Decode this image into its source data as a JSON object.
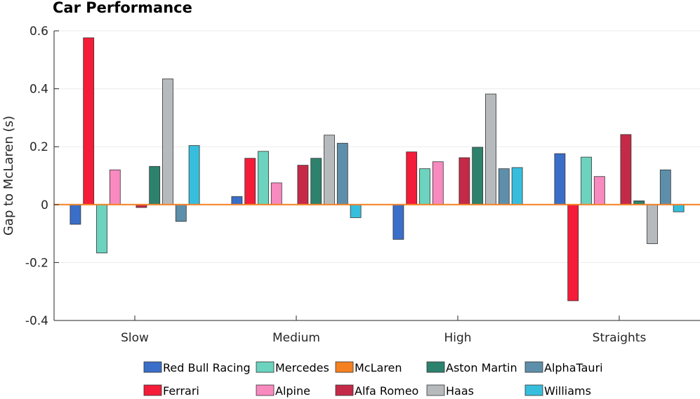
{
  "chart_data": {
    "type": "bar",
    "title": "Car Performance",
    "xlabel": "",
    "ylabel": "Gap to McLaren (s)",
    "ylim": [
      -0.4,
      0.6
    ],
    "yticks": [
      -0.4,
      -0.2,
      0,
      0.2,
      0.4,
      0.6
    ],
    "ytick_labels": [
      "-0.4",
      "-0.2",
      "0",
      "0.2",
      "0.4",
      "0.6"
    ],
    "grid": true,
    "legend_position": "bottom",
    "categories": [
      "Slow",
      "Medium",
      "High",
      "Straights"
    ],
    "series": [
      {
        "name": "Red Bull Racing",
        "color": "#3a6fc9",
        "values": [
          -0.068,
          0.028,
          -0.12,
          0.176
        ]
      },
      {
        "name": "Ferrari",
        "color": "#f41c39",
        "values": [
          0.576,
          0.16,
          0.182,
          -0.332
        ]
      },
      {
        "name": "Mercedes",
        "color": "#6cd3bf",
        "values": [
          -0.167,
          0.184,
          0.124,
          0.164
        ]
      },
      {
        "name": "Alpine",
        "color": "#f88ac0",
        "values": [
          0.12,
          0.075,
          0.148,
          0.097
        ]
      },
      {
        "name": "McLaren",
        "color": "#f58020",
        "values": [
          0,
          0,
          0,
          0
        ]
      },
      {
        "name": "Alfa Romeo",
        "color": "#c42a47",
        "values": [
          -0.01,
          0.136,
          0.162,
          0.242
        ]
      },
      {
        "name": "Aston Martin",
        "color": "#2d826d",
        "values": [
          0.132,
          0.16,
          0.198,
          0.013
        ]
      },
      {
        "name": "Haas",
        "color": "#b6babd",
        "values": [
          0.434,
          0.24,
          0.382,
          -0.135
        ]
      },
      {
        "name": "AlphaTauri",
        "color": "#5e8faa",
        "values": [
          -0.058,
          0.212,
          0.124,
          0.12
        ]
      },
      {
        "name": "Williams",
        "color": "#37bedd",
        "values": [
          0.204,
          -0.045,
          0.128,
          -0.025
        ]
      }
    ],
    "legend_order": [
      "Red Bull Racing",
      "Mercedes",
      "McLaren",
      "Aston Martin",
      "AlphaTauri",
      "Ferrari",
      "Alpine",
      "Alfa Romeo",
      "Haas",
      "Williams"
    ]
  }
}
